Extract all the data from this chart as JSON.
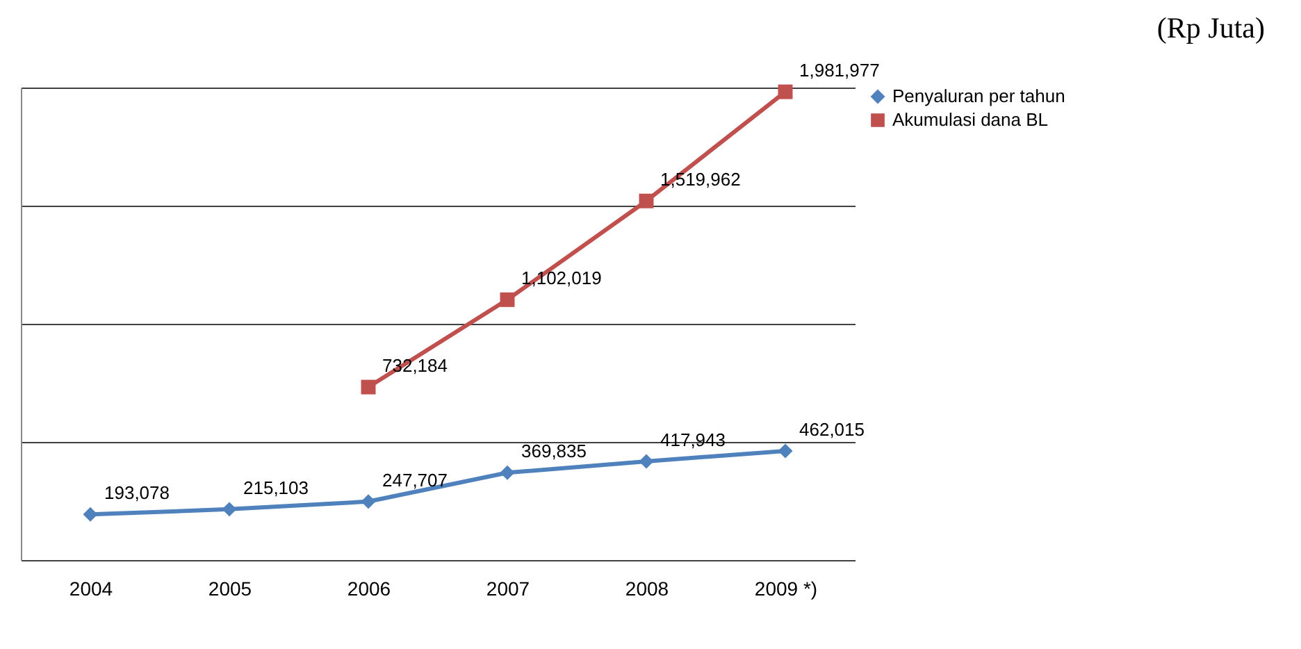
{
  "chart_data": {
    "type": "line",
    "categories": [
      "2004",
      "2005",
      "2006",
      "2007",
      "2008",
      "2009 *)"
    ],
    "series": [
      {
        "name": "Penyaluran per tahun",
        "color": "#4f81bd",
        "marker": "diamond",
        "values": [
          193078,
          215103,
          247707,
          369835,
          417943,
          462015
        ],
        "value_labels": [
          "193,078",
          "215,103",
          "247,707",
          "369,835",
          "417,943",
          "462,015"
        ]
      },
      {
        "name": "Akumulasi dana BL",
        "color": "#c0504d",
        "marker": "square",
        "values": [
          null,
          null,
          732184,
          1102019,
          1519962,
          1981977
        ],
        "value_labels": [
          null,
          null,
          "732,184",
          "1,102,019",
          "1,519,962",
          "1,981,977"
        ]
      }
    ],
    "grid": "y",
    "legend": "right",
    "tick_labels": "x",
    "annotations": [
      "(Rp Juta)"
    ]
  }
}
